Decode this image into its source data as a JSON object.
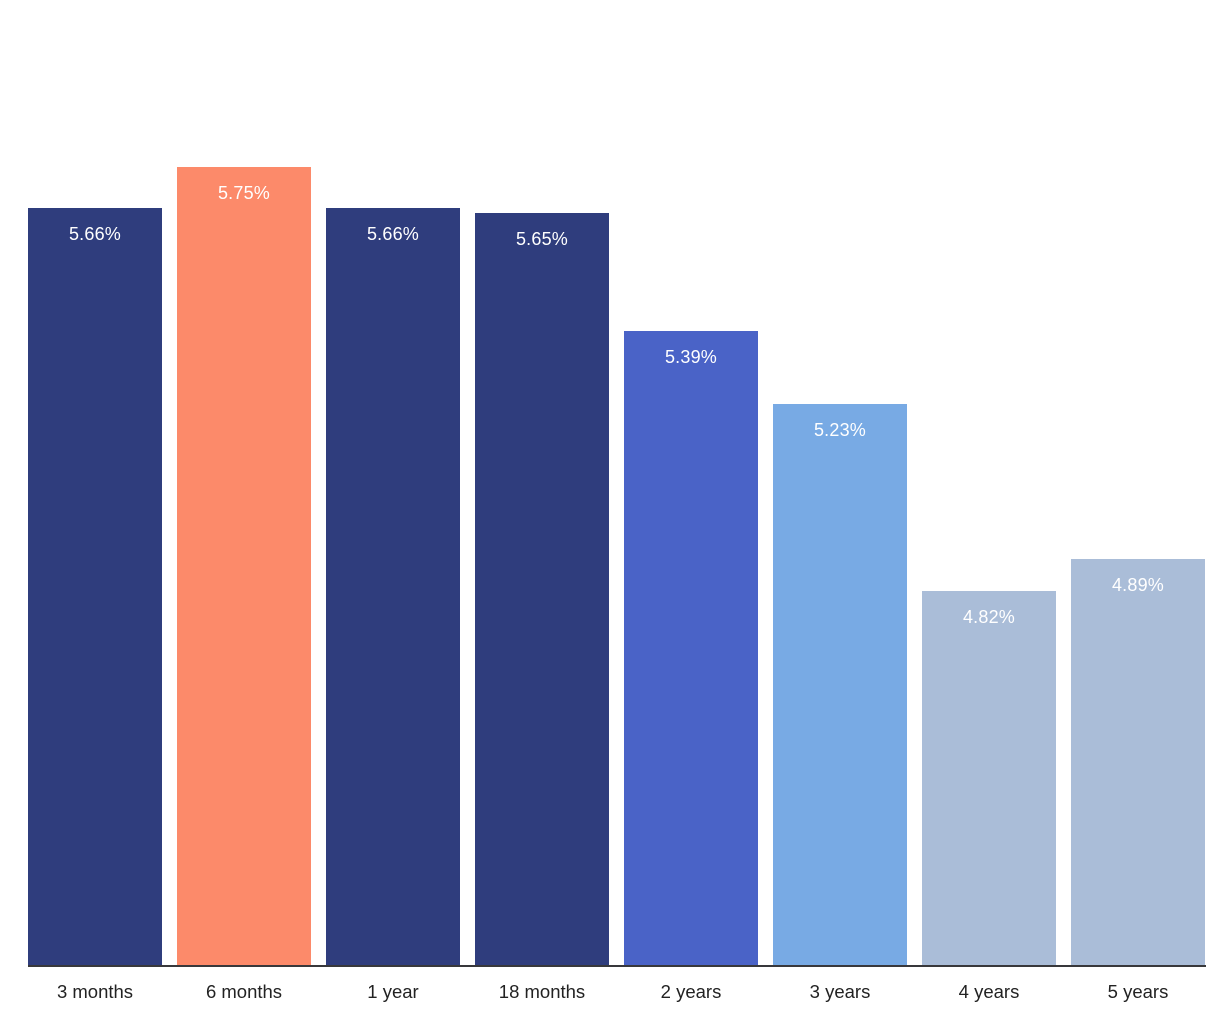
{
  "chart_data": {
    "type": "bar",
    "title": "",
    "xlabel": "",
    "ylabel": "",
    "categories": [
      "3 months",
      "6 months",
      "1 year",
      "18 months",
      "2 years",
      "3 years",
      "4 years",
      "5 years"
    ],
    "values": [
      5.66,
      5.75,
      5.66,
      5.65,
      5.39,
      5.23,
      4.82,
      4.89
    ],
    "value_labels": [
      "5.66%",
      "5.75%",
      "5.66%",
      "5.65%",
      "5.39%",
      "5.23%",
      "4.82%",
      "4.89%"
    ],
    "bar_colors": [
      "#2f3d7d",
      "#fc8a6a",
      "#2f3d7d",
      "#2f3d7d",
      "#4a63c7",
      "#78aae4",
      "#aabdd8",
      "#aabdd8"
    ],
    "highlight_index": 1,
    "ylim": [
      4.0,
      5.75
    ],
    "grid": false,
    "legend": "none",
    "value_label_position": "inside-top",
    "value_label_color": "#ffffff",
    "axis_line_color": "#38383b",
    "tick_label_color": "#222222",
    "background_color": "#ffffff"
  }
}
